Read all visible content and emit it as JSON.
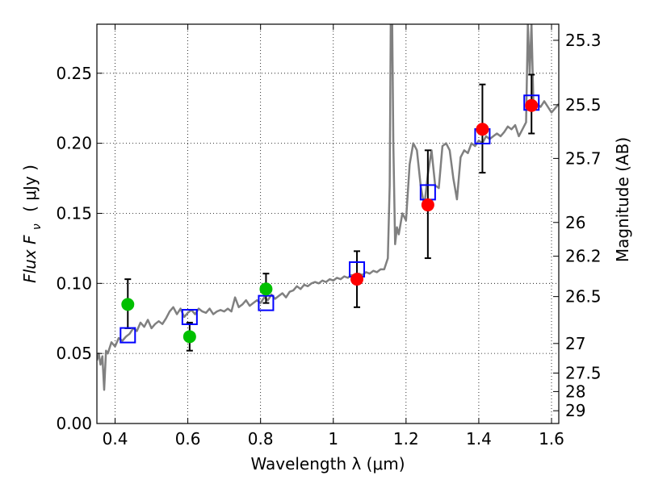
{
  "chart_data": {
    "type": "scatter",
    "xlabel": "Wavelength  λ (μm)",
    "ylabel": "Flux  F",
    "ylabel_sub": "ν",
    "ylabel_unit": "( μJy )",
    "ylabel_right": "Magnitude (AB)",
    "xlim": [
      0.35,
      1.62
    ],
    "ylim": [
      0.0,
      0.285
    ],
    "grid": true,
    "grid_style": "dotted",
    "x_ticks": [
      0.4,
      0.6,
      0.8,
      1.0,
      1.2,
      1.4,
      1.6
    ],
    "x_tick_labels": [
      "0.4",
      "0.6",
      "0.8",
      "1",
      "1.2",
      "1.4",
      "1.6"
    ],
    "y_ticks": [
      0.0,
      0.05,
      0.1,
      0.15,
      0.2,
      0.25
    ],
    "y_tick_labels": [
      "0.00",
      "0.05",
      "0.10",
      "0.15",
      "0.20",
      "0.25"
    ],
    "right_ticks": [
      {
        "label": "25.3",
        "flux": 0.2735
      },
      {
        "label": "25.5",
        "flux": 0.2275
      },
      {
        "label": "25.7",
        "flux": 0.1892
      },
      {
        "label": "26",
        "flux": 0.1435
      },
      {
        "label": "26.2",
        "flux": 0.1194
      },
      {
        "label": "26.5",
        "flux": 0.0906
      },
      {
        "label": "27",
        "flux": 0.0571
      },
      {
        "label": "27.5",
        "flux": 0.036
      },
      {
        "label": "28",
        "flux": 0.0228
      },
      {
        "label": "29",
        "flux": 0.0091
      }
    ],
    "series": [
      {
        "kind": "line",
        "color": "#808080",
        "points": [
          [
            0.35,
            0.045
          ],
          [
            0.355,
            0.05
          ],
          [
            0.36,
            0.042
          ],
          [
            0.365,
            0.048
          ],
          [
            0.37,
            0.024
          ],
          [
            0.375,
            0.052
          ],
          [
            0.38,
            0.05
          ],
          [
            0.39,
            0.058
          ],
          [
            0.4,
            0.055
          ],
          [
            0.41,
            0.061
          ],
          [
            0.42,
            0.059
          ],
          [
            0.43,
            0.062
          ],
          [
            0.44,
            0.064
          ],
          [
            0.45,
            0.068
          ],
          [
            0.46,
            0.066
          ],
          [
            0.47,
            0.072
          ],
          [
            0.48,
            0.069
          ],
          [
            0.49,
            0.074
          ],
          [
            0.5,
            0.068
          ],
          [
            0.51,
            0.071
          ],
          [
            0.52,
            0.073
          ],
          [
            0.53,
            0.071
          ],
          [
            0.54,
            0.075
          ],
          [
            0.55,
            0.08
          ],
          [
            0.56,
            0.083
          ],
          [
            0.57,
            0.078
          ],
          [
            0.58,
            0.082
          ],
          [
            0.59,
            0.076
          ],
          [
            0.6,
            0.079
          ],
          [
            0.61,
            0.081
          ],
          [
            0.62,
            0.078
          ],
          [
            0.63,
            0.082
          ],
          [
            0.64,
            0.08
          ],
          [
            0.65,
            0.079
          ],
          [
            0.66,
            0.082
          ],
          [
            0.67,
            0.078
          ],
          [
            0.68,
            0.08
          ],
          [
            0.69,
            0.081
          ],
          [
            0.7,
            0.08
          ],
          [
            0.71,
            0.082
          ],
          [
            0.72,
            0.08
          ],
          [
            0.73,
            0.09
          ],
          [
            0.74,
            0.083
          ],
          [
            0.75,
            0.085
          ],
          [
            0.76,
            0.088
          ],
          [
            0.77,
            0.084
          ],
          [
            0.78,
            0.086
          ],
          [
            0.79,
            0.088
          ],
          [
            0.8,
            0.086
          ],
          [
            0.81,
            0.09
          ],
          [
            0.82,
            0.088
          ],
          [
            0.83,
            0.092
          ],
          [
            0.84,
            0.089
          ],
          [
            0.85,
            0.091
          ],
          [
            0.86,
            0.093
          ],
          [
            0.87,
            0.09
          ],
          [
            0.88,
            0.094
          ],
          [
            0.89,
            0.095
          ],
          [
            0.9,
            0.098
          ],
          [
            0.91,
            0.096
          ],
          [
            0.92,
            0.099
          ],
          [
            0.93,
            0.098
          ],
          [
            0.94,
            0.1
          ],
          [
            0.95,
            0.101
          ],
          [
            0.96,
            0.1
          ],
          [
            0.97,
            0.102
          ],
          [
            0.98,
            0.101
          ],
          [
            0.99,
            0.103
          ],
          [
            1.0,
            0.102
          ],
          [
            1.01,
            0.104
          ],
          [
            1.02,
            0.103
          ],
          [
            1.03,
            0.105
          ],
          [
            1.04,
            0.104
          ],
          [
            1.05,
            0.106
          ],
          [
            1.06,
            0.105
          ],
          [
            1.07,
            0.107
          ],
          [
            1.08,
            0.106
          ],
          [
            1.09,
            0.108
          ],
          [
            1.1,
            0.107
          ],
          [
            1.11,
            0.109
          ],
          [
            1.12,
            0.108
          ],
          [
            1.13,
            0.11
          ],
          [
            1.14,
            0.11
          ],
          [
            1.15,
            0.118
          ],
          [
            1.155,
            0.17
          ],
          [
            1.158,
            0.285
          ],
          [
            1.162,
            0.285
          ],
          [
            1.165,
            0.2
          ],
          [
            1.17,
            0.128
          ],
          [
            1.175,
            0.14
          ],
          [
            1.18,
            0.135
          ],
          [
            1.19,
            0.15
          ],
          [
            1.2,
            0.145
          ],
          [
            1.21,
            0.185
          ],
          [
            1.22,
            0.2
          ],
          [
            1.23,
            0.195
          ],
          [
            1.24,
            0.17
          ],
          [
            1.25,
            0.155
          ],
          [
            1.26,
            0.178
          ],
          [
            1.27,
            0.195
          ],
          [
            1.28,
            0.17
          ],
          [
            1.29,
            0.168
          ],
          [
            1.3,
            0.198
          ],
          [
            1.31,
            0.2
          ],
          [
            1.32,
            0.195
          ],
          [
            1.33,
            0.175
          ],
          [
            1.34,
            0.16
          ],
          [
            1.35,
            0.19
          ],
          [
            1.36,
            0.195
          ],
          [
            1.37,
            0.193
          ],
          [
            1.38,
            0.2
          ],
          [
            1.39,
            0.198
          ],
          [
            1.4,
            0.202
          ],
          [
            1.41,
            0.2
          ],
          [
            1.42,
            0.205
          ],
          [
            1.43,
            0.203
          ],
          [
            1.44,
            0.205
          ],
          [
            1.45,
            0.207
          ],
          [
            1.46,
            0.205
          ],
          [
            1.47,
            0.208
          ],
          [
            1.48,
            0.212
          ],
          [
            1.49,
            0.21
          ],
          [
            1.5,
            0.213
          ],
          [
            1.51,
            0.205
          ],
          [
            1.52,
            0.21
          ],
          [
            1.53,
            0.215
          ],
          [
            1.535,
            0.285
          ],
          [
            1.54,
            0.25
          ],
          [
            1.545,
            0.285
          ],
          [
            1.55,
            0.23
          ],
          [
            1.56,
            0.228
          ],
          [
            1.57,
            0.226
          ],
          [
            1.58,
            0.23
          ],
          [
            1.59,
            0.226
          ],
          [
            1.6,
            0.222
          ],
          [
            1.61,
            0.225
          ],
          [
            1.62,
            0.228
          ]
        ]
      },
      {
        "kind": "squares",
        "color": "#0000ff",
        "points": [
          [
            0.435,
            0.063
          ],
          [
            0.605,
            0.076
          ],
          [
            0.815,
            0.086
          ],
          [
            1.065,
            0.11
          ],
          [
            1.26,
            0.165
          ],
          [
            1.41,
            0.205
          ],
          [
            1.545,
            0.229
          ]
        ]
      },
      {
        "kind": "points",
        "color": "#00c000",
        "points": [
          {
            "x": 0.435,
            "y": 0.085,
            "yerr": [
              0.068,
              0.103
            ]
          },
          {
            "x": 0.605,
            "y": 0.062,
            "yerr": [
              0.052,
              0.072
            ]
          },
          {
            "x": 0.815,
            "y": 0.096,
            "yerr": [
              0.086,
              0.107
            ]
          }
        ]
      },
      {
        "kind": "points",
        "color": "#ff0000",
        "points": [
          {
            "x": 1.065,
            "y": 0.103,
            "yerr": [
              0.083,
              0.123
            ]
          },
          {
            "x": 1.26,
            "y": 0.156,
            "yerr": [
              0.118,
              0.195
            ]
          },
          {
            "x": 1.41,
            "y": 0.21,
            "yerr": [
              0.179,
              0.242
            ]
          },
          {
            "x": 1.545,
            "y": 0.227,
            "yerr": [
              0.207,
              0.249
            ]
          }
        ]
      }
    ]
  }
}
